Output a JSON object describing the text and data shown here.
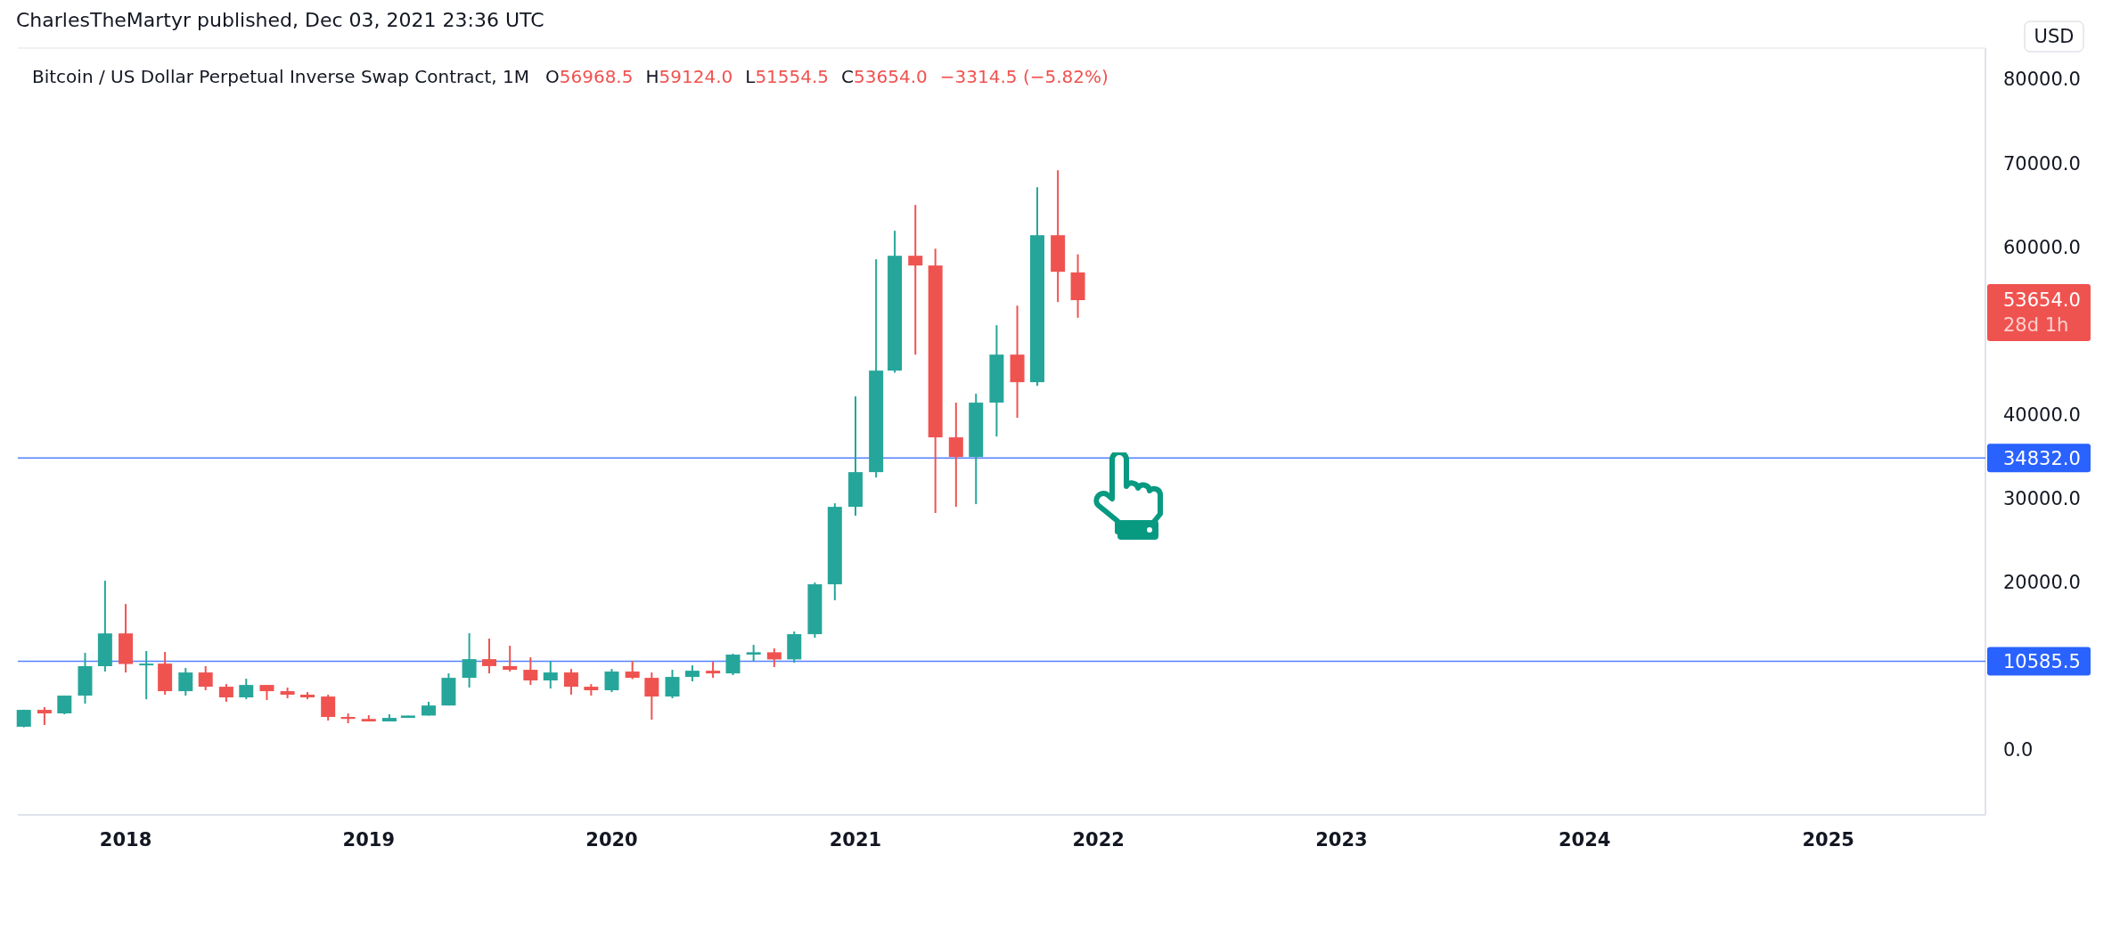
{
  "chart_data": {
    "type": "candlestick",
    "title": "Bitcoin / US Dollar Perpetual Inverse Swap Contract, 1M",
    "subtitle": "CharlesTheMartyr published, Dec 03, 2021 23:36 UTC",
    "ylabel": "USD",
    "x": [
      "2017-08",
      "2017-09",
      "2017-10",
      "2017-11",
      "2017-12",
      "2018-01",
      "2018-02",
      "2018-03",
      "2018-04",
      "2018-05",
      "2018-06",
      "2018-07",
      "2018-08",
      "2018-09",
      "2018-10",
      "2018-11",
      "2018-12",
      "2019-01",
      "2019-02",
      "2019-03",
      "2019-04",
      "2019-05",
      "2019-06",
      "2019-07",
      "2019-08",
      "2019-09",
      "2019-10",
      "2019-11",
      "2019-12",
      "2020-01",
      "2020-02",
      "2020-03",
      "2020-04",
      "2020-05",
      "2020-06",
      "2020-07",
      "2020-08",
      "2020-09",
      "2020-10",
      "2020-11",
      "2020-12",
      "2021-01",
      "2021-02",
      "2021-03",
      "2021-04",
      "2021-05",
      "2021-06",
      "2021-07",
      "2021-08",
      "2021-09",
      "2021-10",
      "2021-11",
      "2021-12"
    ],
    "ohlc": [
      [
        2760,
        4800,
        2700,
        4780
      ],
      [
        4780,
        5100,
        2980,
        4360
      ],
      [
        4360,
        6480,
        4250,
        6480
      ],
      [
        6480,
        11580,
        5520,
        9990
      ],
      [
        9990,
        20180,
        9350,
        13900
      ],
      [
        13900,
        17400,
        9240,
        10250
      ],
      [
        10250,
        11800,
        6050,
        10300
      ],
      [
        10300,
        11690,
        6590,
        7010
      ],
      [
        7010,
        9770,
        6480,
        9240
      ],
      [
        9240,
        9990,
        7120,
        7540
      ],
      [
        7540,
        7860,
        5740,
        6270
      ],
      [
        6270,
        8500,
        6050,
        7750
      ],
      [
        7750,
        7750,
        5950,
        7010
      ],
      [
        7010,
        7440,
        6160,
        6590
      ],
      [
        6590,
        6900,
        6050,
        6270
      ],
      [
        6370,
        6590,
        3500,
        3930
      ],
      [
        3930,
        4350,
        3190,
        3700
      ],
      [
        3700,
        4140,
        3400,
        3400
      ],
      [
        3400,
        4250,
        3400,
        3820
      ],
      [
        3820,
        4100,
        3820,
        4100
      ],
      [
        4100,
        5740,
        4100,
        5300
      ],
      [
        5300,
        9130,
        5300,
        8600
      ],
      [
        8600,
        13920,
        7440,
        10830
      ],
      [
        10830,
        13280,
        9130,
        10000
      ],
      [
        10000,
        12430,
        9350,
        9560
      ],
      [
        9560,
        11050,
        7750,
        8290
      ],
      [
        8290,
        10620,
        7330,
        9240
      ],
      [
        9240,
        9660,
        6590,
        7540
      ],
      [
        7540,
        7860,
        6480,
        7120
      ],
      [
        7120,
        9660,
        6900,
        9350
      ],
      [
        9350,
        10620,
        8450,
        8600
      ],
      [
        8600,
        9240,
        3610,
        6370
      ],
      [
        6370,
        9560,
        6160,
        8710
      ],
      [
        8710,
        10090,
        8180,
        9450
      ],
      [
        9450,
        10520,
        8600,
        9130
      ],
      [
        9130,
        11470,
        8920,
        11370
      ],
      [
        11370,
        12530,
        10620,
        11650
      ],
      [
        11650,
        12110,
        9880,
        10800
      ],
      [
        10800,
        14130,
        10410,
        13810
      ],
      [
        13810,
        19970,
        13380,
        19760
      ],
      [
        19760,
        29420,
        17850,
        29000
      ],
      [
        29000,
        42170,
        27940,
        33140
      ],
      [
        33140,
        58530,
        32500,
        45250
      ],
      [
        45250,
        61930,
        45000,
        58950
      ],
      [
        58950,
        65010,
        47160,
        57790
      ],
      [
        57790,
        59800,
        28260,
        37290
      ],
      [
        37290,
        41430,
        29000,
        34950
      ],
      [
        34950,
        42490,
        29320,
        41430
      ],
      [
        41430,
        50670,
        37390,
        47160
      ],
      [
        47160,
        53000,
        39620,
        43870
      ],
      [
        43870,
        67130,
        43440,
        61400
      ],
      [
        61400,
        69150,
        53430,
        57040
      ],
      [
        56968.5,
        59124.0,
        51554.5,
        53654.0
      ]
    ],
    "colors": [
      "#26a69a",
      "#ef5350",
      "#26a69a",
      "#26a69a",
      "#26a69a",
      "#ef5350",
      "#26a69a",
      "#ef5350",
      "#26a69a",
      "#ef5350",
      "#ef5350",
      "#26a69a",
      "#ef5350",
      "#ef5350",
      "#ef5350",
      "#ef5350",
      "#ef5350",
      "#ef5350",
      "#26a69a",
      "#26a69a",
      "#26a69a",
      "#26a69a",
      "#26a69a",
      "#ef5350",
      "#ef5350",
      "#ef5350",
      "#26a69a",
      "#ef5350",
      "#ef5350",
      "#26a69a",
      "#ef5350",
      "#ef5350",
      "#26a69a",
      "#26a69a",
      "#ef5350",
      "#26a69a",
      "#26a69a",
      "#ef5350",
      "#26a69a",
      "#26a69a",
      "#26a69a",
      "#26a69a",
      "#26a69a",
      "#26a69a",
      "#ef5350",
      "#ef5350",
      "#ef5350",
      "#26a69a",
      "#26a69a",
      "#ef5350",
      "#26a69a",
      "#ef5350",
      "#ef5350"
    ],
    "xlim": [
      "2017-07-23",
      "2025-08-25"
    ],
    "xticks": [
      {
        "value": "2018-01",
        "label": "2018"
      },
      {
        "value": "2019-01",
        "label": "2019"
      },
      {
        "value": "2020-01",
        "label": "2020"
      },
      {
        "value": "2021-01",
        "label": "2021"
      },
      {
        "value": "2022-01",
        "label": "2022"
      },
      {
        "value": "2023-01",
        "label": "2023"
      },
      {
        "value": "2024-01",
        "label": "2024"
      },
      {
        "value": "2025-01",
        "label": "2025"
      }
    ],
    "ylim": [
      -7750,
      83300
    ],
    "yticks": [
      {
        "value": 0,
        "label": "0.0"
      },
      {
        "value": 20000,
        "label": "20000.0"
      },
      {
        "value": 30000,
        "label": "30000.0"
      },
      {
        "value": 40000,
        "label": "40000.0"
      },
      {
        "value": 60000,
        "label": "60000.0"
      },
      {
        "value": 70000,
        "label": "70000.0"
      },
      {
        "value": 80000,
        "label": "80000.0"
      }
    ],
    "ref_lines": [
      {
        "axis": "y",
        "value": 34832.0,
        "label": "34832.0",
        "color": "#2962ff"
      },
      {
        "axis": "y",
        "value": 10585.5,
        "label": "10585.5",
        "color": "#2962ff"
      }
    ],
    "annotations": [
      "O56968.5",
      "H59124.0",
      "L51554.5",
      "C53654.0",
      "−3314.5 (−5.82%)",
      "53654.0",
      "28d 1h"
    ],
    "grid": false
  }
}
